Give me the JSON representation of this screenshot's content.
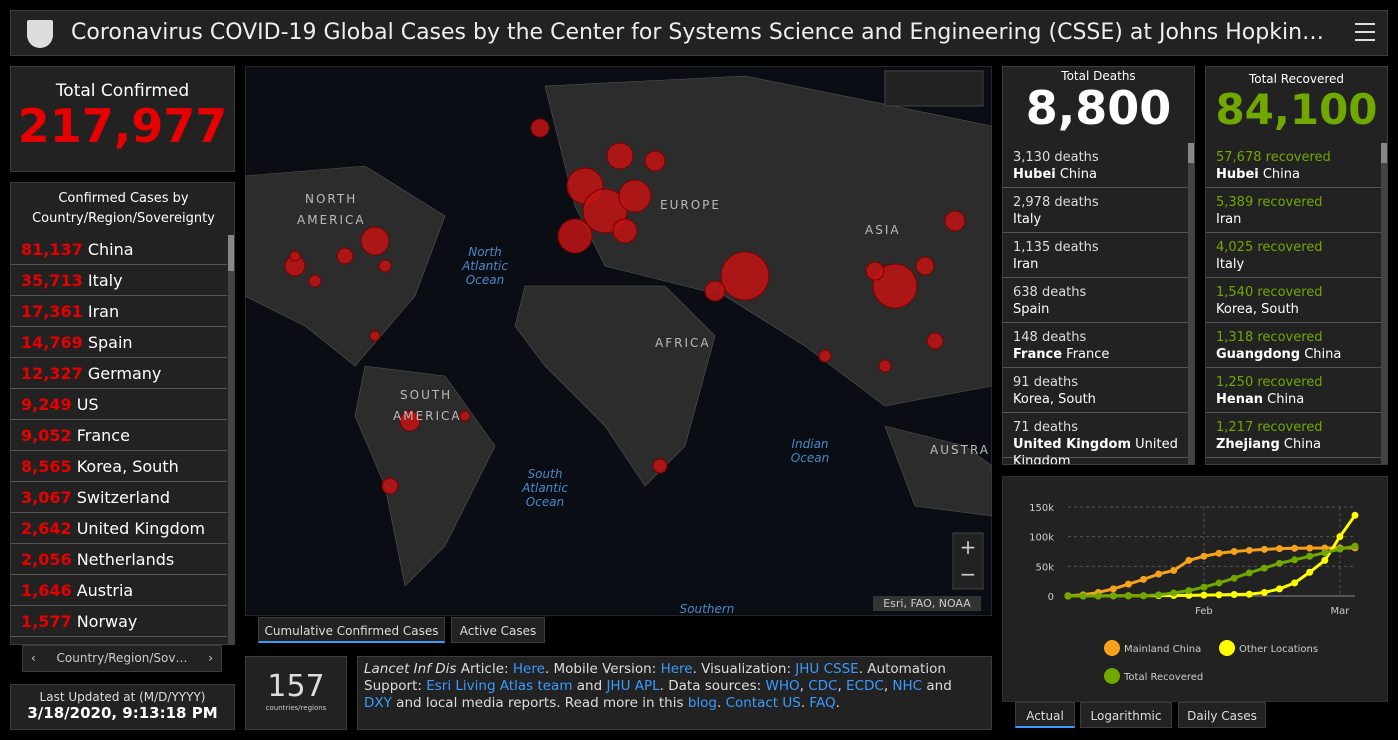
{
  "header": {
    "title": "Coronavirus COVID-19 Global Cases by the Center for Systems Science and Engineering (CSSE) at Johns Hopkin…"
  },
  "total_confirmed": {
    "label": "Total Confirmed",
    "value": "217,977"
  },
  "country_list": {
    "title": "Confirmed Cases by Country/Region/Sovereignty",
    "rows": [
      {
        "count": "81,137",
        "name": "China"
      },
      {
        "count": "35,713",
        "name": "Italy"
      },
      {
        "count": "17,361",
        "name": "Iran"
      },
      {
        "count": "14,769",
        "name": "Spain"
      },
      {
        "count": "12,327",
        "name": "Germany"
      },
      {
        "count": "9,249",
        "name": "US"
      },
      {
        "count": "9,052",
        "name": "France"
      },
      {
        "count": "8,565",
        "name": "Korea, South"
      },
      {
        "count": "3,067",
        "name": "Switzerland"
      },
      {
        "count": "2,642",
        "name": "United Kingdom"
      },
      {
        "count": "2,056",
        "name": "Netherlands"
      },
      {
        "count": "1,646",
        "name": "Austria"
      },
      {
        "count": "1,577",
        "name": "Norway"
      }
    ],
    "pager": "Country/Region/Sov…"
  },
  "last_updated": {
    "label": "Last Updated at (M/D/YYYY)",
    "value": "3/18/2020, 9:13:18 PM"
  },
  "map": {
    "labels": [
      "NORTH",
      "AMERICA",
      "EUROPE",
      "ASIA",
      "AFRICA",
      "SOUTH",
      "AMERICA",
      "AUSTRA"
    ],
    "oceans": [
      "North Atlantic Ocean",
      "South Atlantic Ocean",
      "Indian Ocean",
      "Southern"
    ],
    "attribution": "Esri, FAO, NOAA",
    "tabs": [
      "Cumulative Confirmed Cases",
      "Active Cases"
    ]
  },
  "countries": {
    "value": "157",
    "label": "countries/regions"
  },
  "info": [
    {
      "text": "Lancet Inf Dis",
      "style": "italic"
    },
    {
      "text": " Article: "
    },
    {
      "text": "Here",
      "link": true
    },
    {
      "text": ". Mobile Version: "
    },
    {
      "text": "Here",
      "link": true
    },
    {
      "text": ". Visualization: "
    },
    {
      "text": "JHU CSSE",
      "link": true
    },
    {
      "text": ". Automation Support: "
    },
    {
      "text": "Esri Living Atlas team",
      "link": true
    },
    {
      "text": " and "
    },
    {
      "text": "JHU APL",
      "link": true
    },
    {
      "text": ". Data sources: "
    },
    {
      "text": "WHO",
      "link": true
    },
    {
      "text": ", "
    },
    {
      "text": "CDC",
      "link": true
    },
    {
      "text": ", "
    },
    {
      "text": "ECDC",
      "link": true
    },
    {
      "text": ", "
    },
    {
      "text": "NHC",
      "link": true
    },
    {
      "text": " and "
    },
    {
      "text": "DXY",
      "link": true
    },
    {
      "text": " and local media reports. Read more in this "
    },
    {
      "text": "blog",
      "link": true
    },
    {
      "text": ". "
    },
    {
      "text": "Contact US",
      "link": true
    },
    {
      "text": ". "
    },
    {
      "text": "FAQ",
      "link": true
    },
    {
      "text": "."
    }
  ],
  "deaths": {
    "label": "Total Deaths",
    "value": "8,800",
    "rows": [
      {
        "count": "3,130",
        "unit": "deaths",
        "place": "Hubei",
        "region": "China"
      },
      {
        "count": "2,978",
        "unit": "deaths",
        "region": "Italy"
      },
      {
        "count": "1,135",
        "unit": "deaths",
        "region": "Iran"
      },
      {
        "count": "638",
        "unit": "deaths",
        "region": "Spain"
      },
      {
        "count": "148",
        "unit": "deaths",
        "place": "France",
        "region": "France"
      },
      {
        "count": "91",
        "unit": "deaths",
        "region": "Korea, South"
      },
      {
        "count": "71",
        "unit": "deaths",
        "place": "United Kingdom",
        "region": "United Kingdom"
      }
    ]
  },
  "recovered": {
    "label": "Total Recovered",
    "value": "84,100",
    "rows": [
      {
        "count": "57,678",
        "unit": "recovered",
        "place": "Hubei",
        "region": "China"
      },
      {
        "count": "5,389",
        "unit": "recovered",
        "region": "Iran"
      },
      {
        "count": "4,025",
        "unit": "recovered",
        "region": "Italy"
      },
      {
        "count": "1,540",
        "unit": "recovered",
        "region": "Korea, South"
      },
      {
        "count": "1,318",
        "unit": "recovered",
        "place": "Guangdong",
        "region": "China"
      },
      {
        "count": "1,250",
        "unit": "recovered",
        "place": "Henan",
        "region": "China"
      },
      {
        "count": "1,217",
        "unit": "recovered",
        "place": "Zhejiang",
        "region": "China"
      }
    ]
  },
  "chart_tabs": [
    "Actual",
    "Logarithmic",
    "Daily Cases"
  ],
  "chart_data": {
    "type": "scatter-line",
    "categories": [
      null,
      null,
      null,
      null,
      null,
      null,
      null,
      null,
      null,
      "Feb",
      null,
      null,
      null,
      null,
      null,
      null,
      null,
      null,
      "Mar",
      null
    ],
    "ylim": [
      0,
      150000
    ],
    "yticks": [
      0,
      {
        "value": 50000,
        "label": "50k"
      },
      {
        "value": 100000,
        "label": "100k"
      },
      {
        "value": 150000,
        "label": "150k"
      }
    ],
    "grid": true,
    "series": [
      {
        "name": "Mainland China",
        "color": "#f7a21b",
        "values": [
          500,
          2000,
          6000,
          12000,
          20000,
          28000,
          37000,
          43000,
          60000,
          67000,
          72000,
          75000,
          77000,
          78500,
          79800,
          80400,
          80700,
          80900,
          81000,
          81100
        ]
      },
      {
        "name": "Other Locations",
        "color": "#ffff00",
        "values": [
          0,
          100,
          200,
          300,
          400,
          500,
          600,
          800,
          1000,
          1500,
          2000,
          2500,
          3000,
          6000,
          12000,
          22000,
          40000,
          60000,
          100000,
          136000
        ]
      },
      {
        "name": "Total Recovered",
        "color": "#70a800",
        "values": [
          0,
          0,
          0,
          0,
          0,
          500,
          2000,
          5000,
          9000,
          15000,
          22000,
          30000,
          39000,
          47000,
          55000,
          61000,
          67000,
          73000,
          79000,
          84000
        ]
      }
    ]
  }
}
